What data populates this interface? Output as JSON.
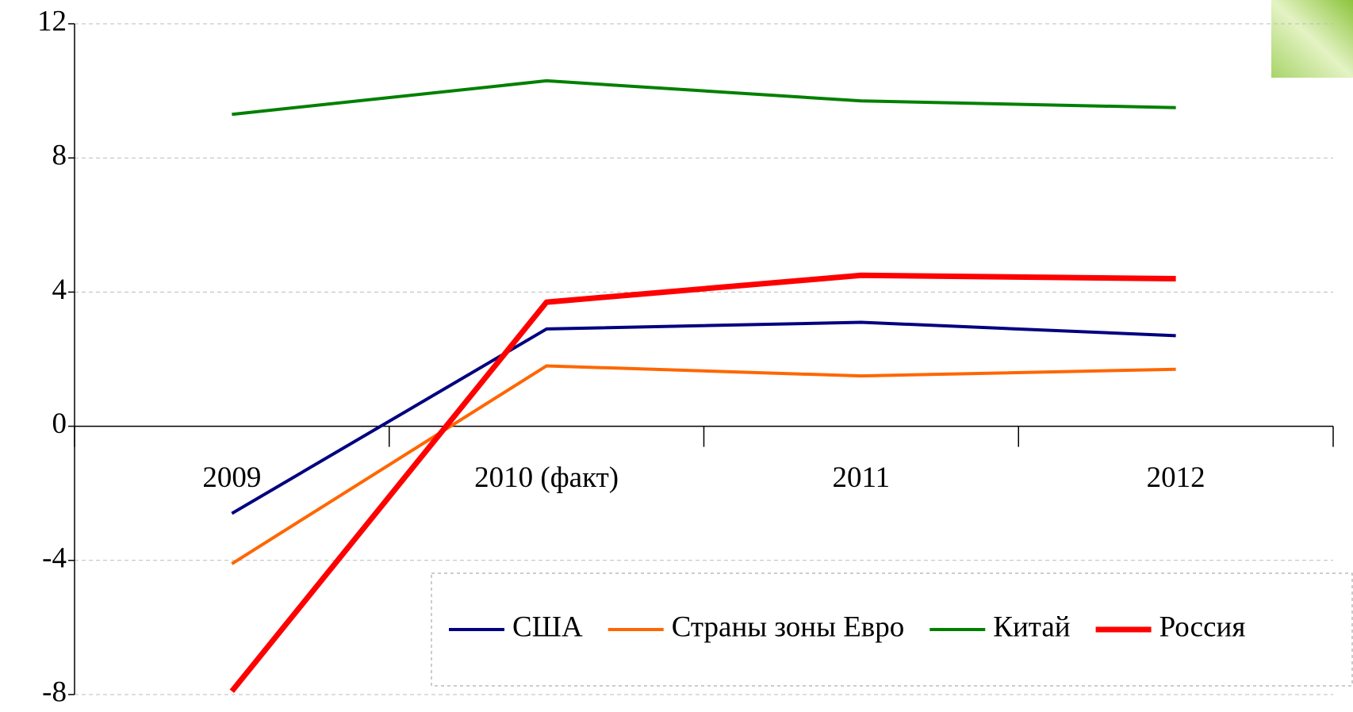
{
  "chart_data": {
    "type": "line",
    "categories": [
      "2009",
      "2010 (факт)",
      "2011",
      "2012"
    ],
    "series": [
      {
        "name": "США",
        "color": "#000080",
        "values": [
          -2.6,
          2.9,
          3.1,
          2.7
        ]
      },
      {
        "name": "Страны зоны Евро",
        "color": "#ff6600",
        "values": [
          -4.1,
          1.8,
          1.5,
          1.7
        ]
      },
      {
        "name": "Китай",
        "color": "#008000",
        "values": [
          9.3,
          10.3,
          9.7,
          9.5
        ]
      },
      {
        "name": "Россия",
        "color": "#ff0000",
        "values": [
          -7.9,
          3.7,
          4.5,
          4.4
        ]
      }
    ],
    "ylim": [
      -8,
      12
    ],
    "yticks": [
      -8,
      -4,
      0,
      4,
      8,
      12
    ],
    "grid": true,
    "legend": "bottom"
  }
}
